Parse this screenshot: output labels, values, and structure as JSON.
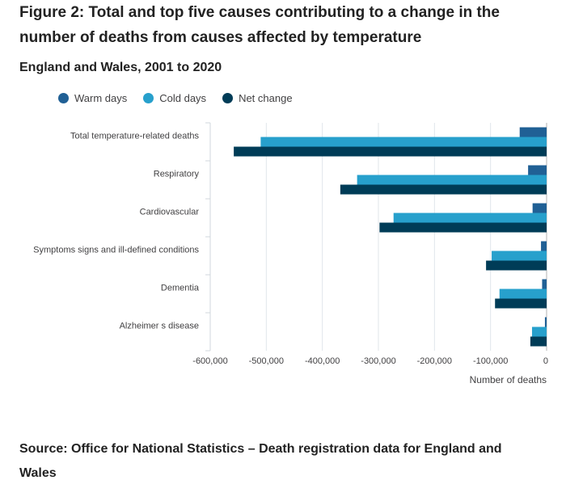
{
  "title": "Figure 2: Total and top five causes contributing to a change in the number of deaths from causes affected by temperature",
  "subtitle": "England and Wales, 2001 to 2020",
  "source": "Source: Office for National Statistics – Death registration data for England and Wales",
  "chart_data": {
    "type": "bar",
    "orientation": "horizontal",
    "categories": [
      "Total temperature-related deaths",
      "Respiratory",
      "Cardiovascular",
      "Symptoms signs and ill-defined conditions",
      "Dementia",
      "Alzheimer s disease"
    ],
    "series": [
      {
        "name": "Warm days",
        "color": "#206095",
        "values": [
          -48000,
          -33000,
          -25000,
          -10000,
          -8000,
          -3000
        ]
      },
      {
        "name": "Cold days",
        "color": "#27a0cc",
        "values": [
          -510000,
          -338000,
          -273000,
          -98000,
          -84000,
          -26000
        ]
      },
      {
        "name": "Net change",
        "color": "#003c57",
        "values": [
          -558000,
          -368000,
          -298000,
          -108000,
          -92000,
          -29000
        ]
      }
    ],
    "xlim": [
      -600000,
      0
    ],
    "xticks": [
      "-600,000",
      "-500,000",
      "-400,000",
      "-300,000",
      "-200,000",
      "-100,000",
      "0"
    ],
    "xlabel": "Number of deaths",
    "ylabel": "",
    "grid": true,
    "legend": "top-left"
  }
}
